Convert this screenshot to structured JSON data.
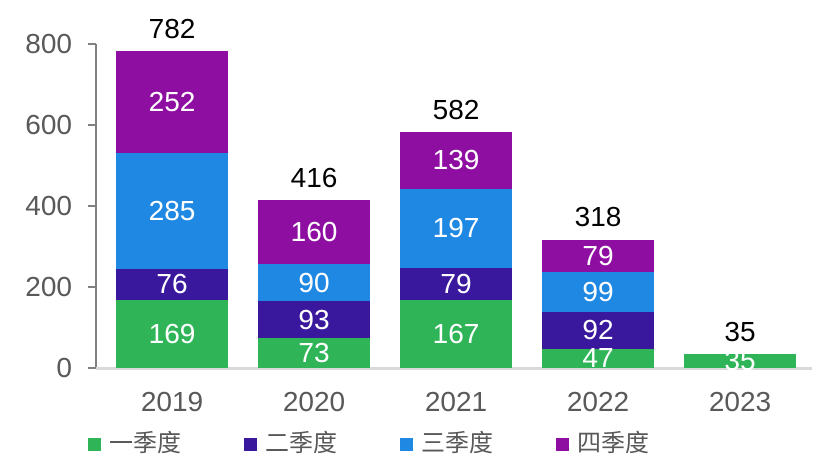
{
  "chart_data": {
    "type": "bar",
    "stacked": true,
    "title": "",
    "xlabel": "",
    "ylabel": "",
    "categories": [
      "2019",
      "2020",
      "2021",
      "2022",
      "2023"
    ],
    "series": [
      {
        "name": "一季度",
        "color": "#2FB457",
        "values": [
          169,
          73,
          167,
          47,
          35
        ]
      },
      {
        "name": "二季度",
        "color": "#3A189E",
        "values": [
          76,
          93,
          79,
          92,
          0
        ]
      },
      {
        "name": "三季度",
        "color": "#1F88E3",
        "values": [
          285,
          90,
          197,
          99,
          0
        ]
      },
      {
        "name": "四季度",
        "color": "#8F0EA2",
        "values": [
          252,
          160,
          139,
          79,
          0
        ]
      }
    ],
    "totals": [
      782,
      416,
      582,
      318,
      35
    ],
    "ylim": [
      0,
      800
    ],
    "y_ticks": [
      0,
      200,
      400,
      600,
      800
    ],
    "grid": false,
    "legend_position": "bottom",
    "legend": [
      "一季度",
      "二季度",
      "三季度",
      "四季度"
    ]
  },
  "colors": {
    "background": "#FFFFFF",
    "total_label": "#000000",
    "segment_label": "#FFFFFF",
    "axis_label": "#595959",
    "axis_line": "#808080",
    "baseline": "#D9D9D9"
  }
}
